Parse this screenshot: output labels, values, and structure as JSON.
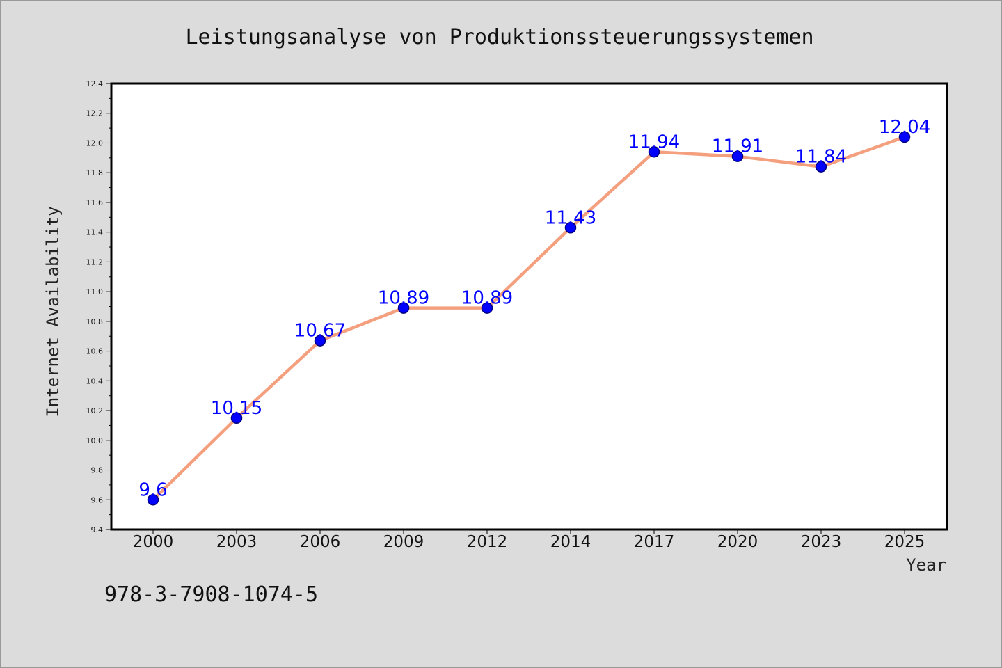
{
  "chart_data": {
    "type": "line",
    "title": "Leistungsanalyse von Produktionssteuerungssystemen",
    "xlabel": "Year",
    "ylabel": "Internet Availability",
    "categories": [
      "2000",
      "2003",
      "2006",
      "2009",
      "2012",
      "2014",
      "2017",
      "2020",
      "2023",
      "2025"
    ],
    "series": [
      {
        "values": [
          9.6,
          10.15,
          10.67,
          10.89,
          10.89,
          11.43,
          11.94,
          11.91,
          11.84,
          12.04
        ],
        "data_labels": [
          "9.6",
          "10.15",
          "10.67",
          "10.89",
          "10.89",
          "11.43",
          "11.94",
          "11.91",
          "11.84",
          "12.04"
        ]
      }
    ],
    "ylim": [
      9.4,
      12.4
    ],
    "yticks": [
      "9.4",
      "9.6",
      "9.8",
      "10.0",
      "10.2",
      "10.4",
      "10.6",
      "10.8",
      "11.0",
      "11.2",
      "11.4",
      "11.6",
      "11.8",
      "12.0",
      "12.2",
      "12.4"
    ],
    "grid": false,
    "legend": "none",
    "colors": {
      "line": "#f4a07f",
      "marker_fill": "#0000ff",
      "marker_edge": "#000080",
      "data_label": "#0000ff",
      "plot_background": "#ffffff",
      "figure_background": "#dcdcdc"
    }
  },
  "footer": {
    "isbn": "978-3-7908-1074-5"
  }
}
